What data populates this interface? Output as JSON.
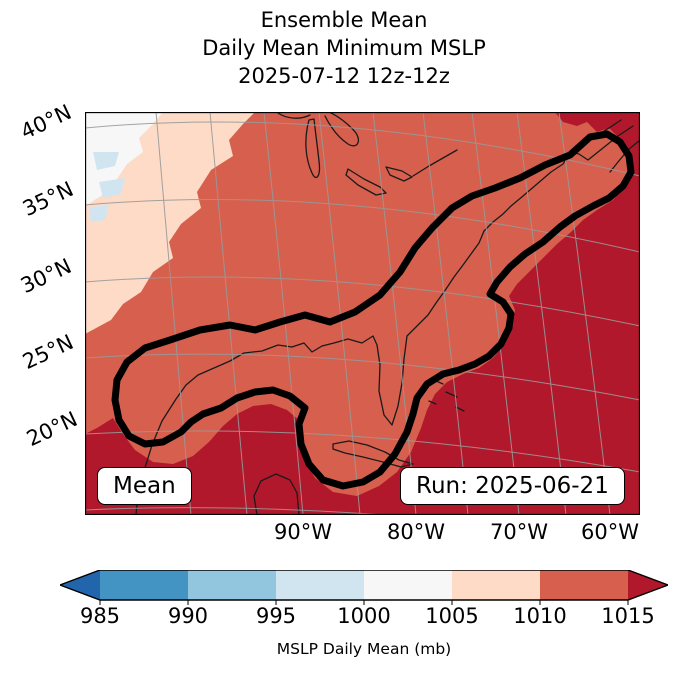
{
  "title": {
    "line1": "Ensemble Mean",
    "line2": "Daily Mean Minimum MSLP",
    "line3": "2025-07-12 12z-12z"
  },
  "map": {
    "mean_label": "Mean",
    "run_label": "Run: 2025-06-21"
  },
  "axes": {
    "lat_ticks": [
      "40°N",
      "35°N",
      "30°N",
      "25°N",
      "20°N"
    ],
    "lon_ticks": [
      "90°W",
      "80°W",
      "70°W",
      "60°W"
    ]
  },
  "colorbar": {
    "label": "MSLP Daily Mean (mb)",
    "ticks": [
      "985",
      "990",
      "995",
      "1000",
      "1005",
      "1010",
      "1015"
    ],
    "under_color": "#2166ac",
    "over_color": "#b2182b",
    "segment_colors": [
      "#4393c3",
      "#92c5de",
      "#d1e5f0",
      "#f7f7f7",
      "#fddbc7",
      "#d6604d"
    ]
  },
  "colors": {
    "field_1010_1015": "#d6604d",
    "field_over_1015": "#b2182b",
    "field_1005_1010": "#fddbc7",
    "field_1000_1005": "#f7f7f7",
    "field_995_1000": "#d1e5f0",
    "contour": "#000000",
    "coastline": "#1a1a1a",
    "gridline": "#999999"
  },
  "chart_data": {
    "type": "heatmap",
    "title": "Ensemble Mean Daily Mean Minimum MSLP 2025-07-12 12z-12z",
    "variable": "MSLP Daily Mean",
    "units": "mb",
    "levels": [
      985,
      990,
      995,
      1000,
      1005,
      1010,
      1015
    ],
    "extend": "both",
    "colormap": [
      "#2166ac",
      "#4393c3",
      "#92c5de",
      "#d1e5f0",
      "#f7f7f7",
      "#fddbc7",
      "#d6604d",
      "#b2182b"
    ],
    "lat_ticks_deg_n": [
      40,
      35,
      30,
      25,
      20
    ],
    "lon_ticks_deg_w": [
      90,
      80,
      70,
      60
    ],
    "regions": [
      {
        "area": "upper-left interior (north-central US)",
        "value_mb": "995-1010 (lightest patches 995-1005 in extreme corner)"
      },
      {
        "area": "eastern North America interior and Great Lakes to Nova Scotia",
        "value_mb": "1010-1015"
      },
      {
        "area": "Gulf of Mexico, Caribbean, Mexico and western Atlantic",
        "value_mb": ">1015"
      }
    ],
    "overlay": "thick black closed contour band stretching from Texas along the Gulf coast and up the US east coast to Nova Scotia, with lobes over Texas, the eastern Gulf/Cuba and offshore of the Southeast coast",
    "annotations": [
      "Mean",
      "Run: 2025-06-21"
    ],
    "grid": true,
    "legend_position": "horizontal colorbar, bottom"
  }
}
